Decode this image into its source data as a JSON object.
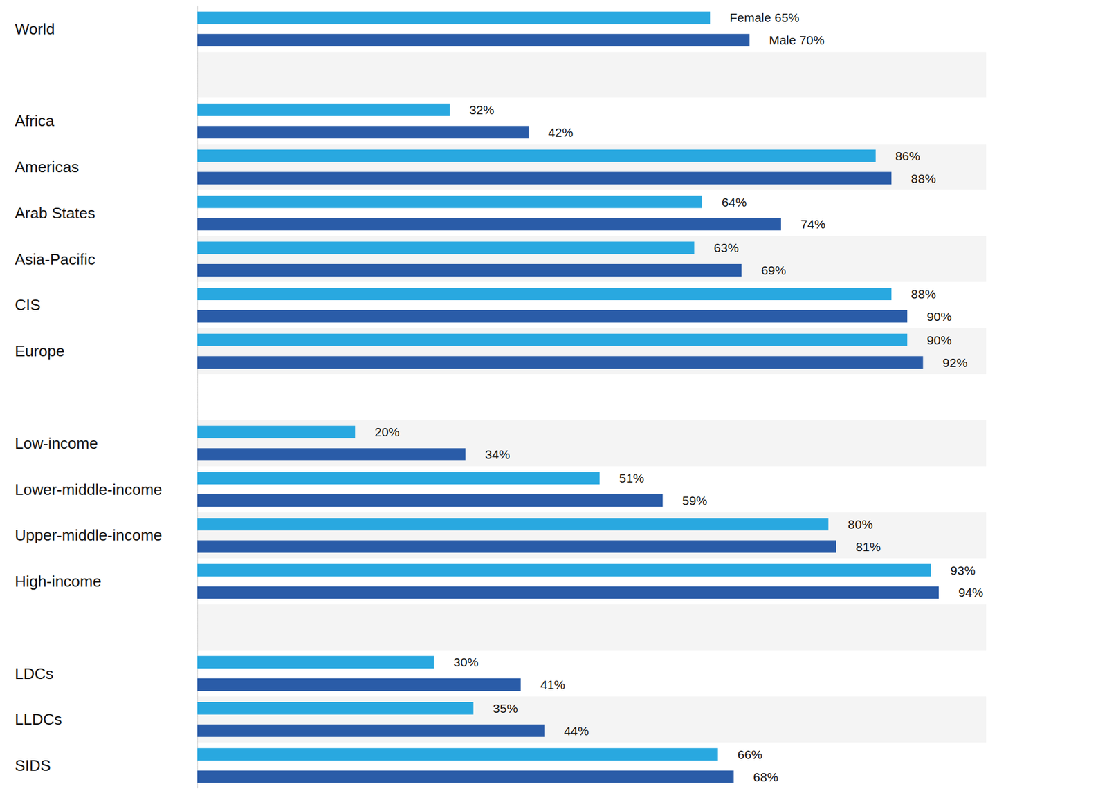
{
  "chart_data": {
    "type": "bar",
    "orientation": "horizontal",
    "categories": [
      "World",
      null,
      "Africa",
      "Americas",
      "Arab States",
      "Asia-Pacific",
      "CIS",
      "Europe",
      null,
      "Low-income",
      "Lower-middle-income",
      "Upper-middle-income",
      "High-income",
      null,
      "LDCs",
      "LLDCs",
      "SIDS"
    ],
    "series": [
      {
        "name": "Female",
        "color": "#29a8e0",
        "values": [
          65,
          null,
          32,
          86,
          64,
          63,
          88,
          90,
          null,
          20,
          51,
          80,
          93,
          null,
          30,
          35,
          66
        ],
        "value_labels": [
          "Female 65%",
          null,
          "32%",
          "86%",
          "64%",
          "63%",
          "88%",
          "90%",
          null,
          "20%",
          "51%",
          "80%",
          "93%",
          null,
          "30%",
          "35%",
          "66%"
        ]
      },
      {
        "name": "Male",
        "color": "#2a5ca8",
        "values": [
          70,
          null,
          42,
          88,
          74,
          69,
          90,
          92,
          null,
          34,
          59,
          81,
          94,
          null,
          41,
          44,
          68
        ],
        "value_labels": [
          "Male 70%",
          null,
          "42%",
          "88%",
          "74%",
          "69%",
          "90%",
          "92%",
          null,
          "34%",
          "59%",
          "81%",
          "94%",
          null,
          "41%",
          "44%",
          "68%"
        ]
      }
    ],
    "xlim": [
      0,
      100
    ],
    "grid": false,
    "tick_labels": "y",
    "data_labels": true
  }
}
